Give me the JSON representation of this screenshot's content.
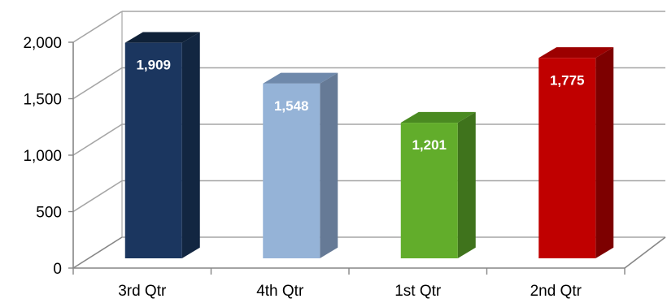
{
  "chart_data": {
    "type": "bar",
    "title": "",
    "xlabel": "",
    "ylabel": "",
    "categories": [
      "3rd Qtr",
      "4th Qtr",
      "1st Qtr",
      "2nd Qtr"
    ],
    "values": [
      1909,
      1548,
      1201,
      1775
    ],
    "data_labels": [
      "1,909",
      "1,548",
      "1,201",
      "1,775"
    ],
    "ylim": [
      0,
      2000
    ],
    "y_ticks": [
      0,
      500,
      1000,
      1500,
      2000
    ],
    "y_tick_labels": [
      "0",
      "500",
      "1,000",
      "1,500",
      "2,000"
    ],
    "grid": true,
    "legend": "none",
    "style": "3d-column",
    "colors": {
      "bars": [
        "#1b365f",
        "#95b3d7",
        "#62ad2b",
        "#c00000"
      ],
      "bar_sides": [
        "#122641",
        "#667a96",
        "#3f731c",
        "#7d0000"
      ],
      "bar_tops": [
        "#0f2138",
        "#6f89ab",
        "#4a8a21",
        "#9c0000"
      ],
      "grid": "#a6a6a6",
      "axis": "#868686"
    }
  }
}
